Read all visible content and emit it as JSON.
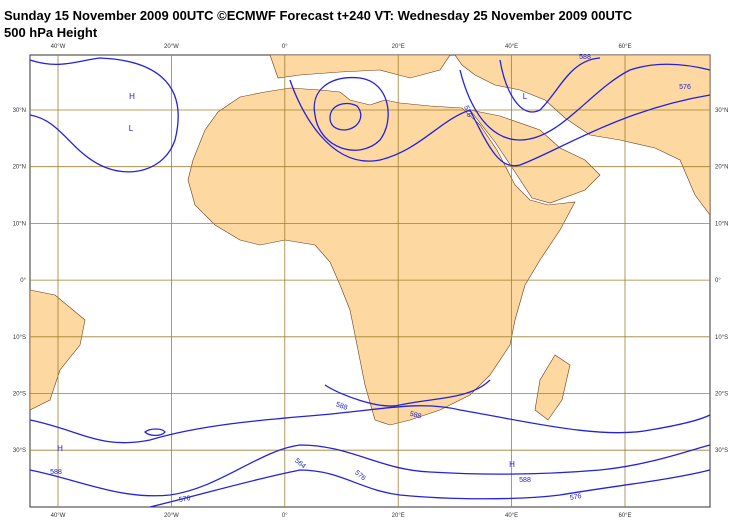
{
  "header": {
    "line1": "Sunday 15 November 2009 00UTC ©ECMWF Forecast t+240 VT: Wednesday 25 November 2009 00UTC",
    "line2": "500 hPa Height"
  },
  "map": {
    "longitude_labels": [
      "40°W",
      "20°W",
      "0°",
      "20°E",
      "40°E",
      "60°E"
    ],
    "latitude_labels": [
      "30°N",
      "20°N",
      "10°N",
      "0°",
      "10°S",
      "20°S",
      "30°S"
    ],
    "pressure_centers": [
      "H",
      "L",
      "L",
      "H",
      "H"
    ],
    "contour_labels": [
      "588",
      "576",
      "576",
      "588",
      "588",
      "564",
      "576",
      "588",
      "576",
      "588",
      "576"
    ]
  }
}
